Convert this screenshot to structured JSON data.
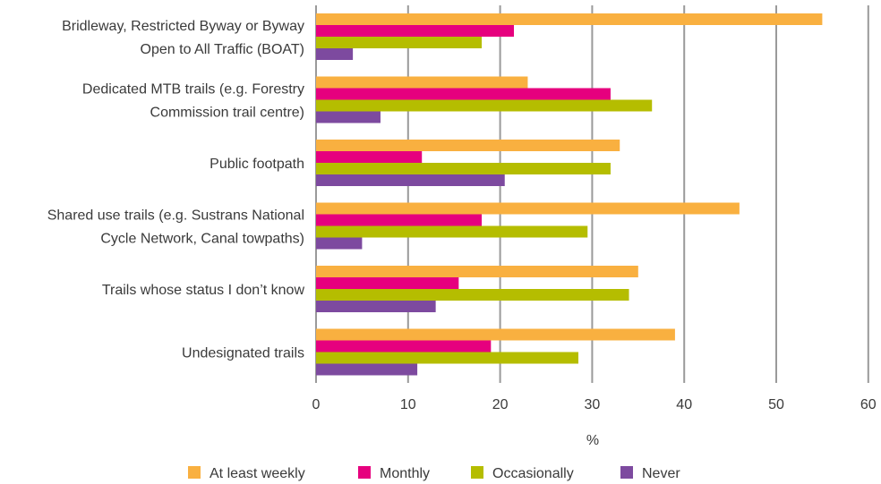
{
  "chart_data": {
    "type": "bar",
    "orientation": "horizontal",
    "categories": [
      [
        "Bridleway, Restricted Byway or Byway",
        "Open to All Traffic (BOAT)"
      ],
      [
        "Dedicated MTB trails (e.g. Forestry",
        "Commission trail centre)"
      ],
      [
        "Public footpath"
      ],
      [
        "Shared use trails (e.g. Sustrans National",
        "Cycle Network, Canal towpaths)"
      ],
      [
        "Trails whose status I don’t know"
      ],
      [
        "Undesignated trails"
      ]
    ],
    "series": [
      {
        "name": "At least weekly",
        "color": "#F9B040",
        "values": [
          55,
          23,
          33,
          46,
          35,
          39
        ]
      },
      {
        "name": "Monthly",
        "color": "#E6007E",
        "values": [
          21.5,
          32,
          11.5,
          18,
          15.5,
          19
        ]
      },
      {
        "name": "Occasionally",
        "color": "#B5BD00",
        "values": [
          18,
          36.5,
          32,
          29.5,
          34,
          28.5
        ]
      },
      {
        "name": "Never",
        "color": "#7D4A9F",
        "values": [
          4,
          7,
          20.5,
          5,
          13,
          11
        ]
      }
    ],
    "xlabel": "%",
    "xlim": [
      0,
      60
    ],
    "xticks": [
      0,
      10,
      20,
      30,
      40,
      50,
      60
    ],
    "grid": true,
    "legend_position": "bottom"
  }
}
